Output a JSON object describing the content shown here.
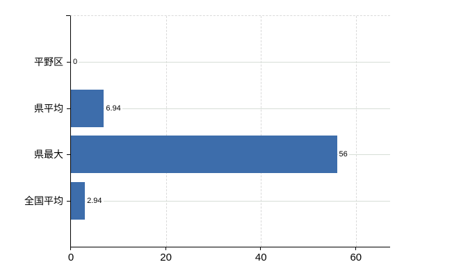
{
  "chart_data": {
    "type": "bar",
    "orientation": "horizontal",
    "title": "",
    "xlabel": "",
    "ylabel": "",
    "categories": [
      "平野区",
      "県平均",
      "県最大",
      "全国平均"
    ],
    "values": [
      0,
      6.94,
      56,
      2.94
    ],
    "value_labels": [
      "0",
      "6.94",
      "56",
      "2.94"
    ],
    "xticks": [
      0,
      20,
      40,
      60
    ],
    "xtick_labels": [
      "0",
      "20",
      "40",
      "60"
    ],
    "xlim": [
      0,
      67.2
    ],
    "grid": true,
    "legend": false,
    "colors": {
      "bar": "#3d6dab",
      "grid": "#d9d9d9",
      "hgrid": "#d6ded6",
      "axis": "#000000",
      "background": "#ffffff"
    }
  }
}
